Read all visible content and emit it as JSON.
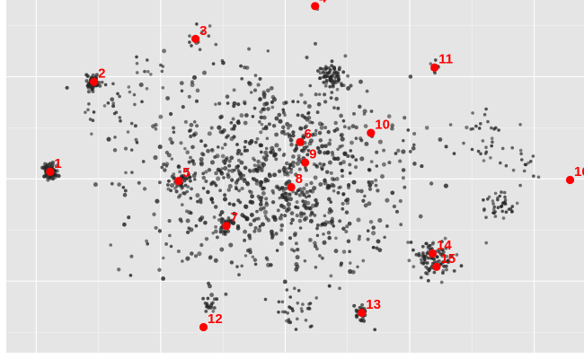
{
  "chart_data": {
    "type": "scatter",
    "title": "",
    "xlabel": "",
    "ylabel": "",
    "grid": true,
    "legend": "none",
    "xlim": [
      -28,
      30
    ],
    "ylim": [
      -17,
      17.5
    ],
    "colors": {
      "panel": "#e5e5e5",
      "gridline": "#ffffff",
      "point": "#262626",
      "highlight": "#ff0000"
    },
    "highlighted": [
      {
        "label": "1",
        "x": -23.6,
        "y": 0.7
      },
      {
        "label": "2",
        "x": -19.2,
        "y": 9.5
      },
      {
        "label": "3",
        "x": -9.0,
        "y": 13.7
      },
      {
        "label": "4",
        "x": 3.0,
        "y": 16.9
      },
      {
        "label": "5",
        "x": -10.7,
        "y": -0.2
      },
      {
        "label": "6",
        "x": 1.5,
        "y": 3.6
      },
      {
        "label": "7",
        "x": -5.9,
        "y": -4.6
      },
      {
        "label": "8",
        "x": 0.6,
        "y": -0.8
      },
      {
        "label": "9",
        "x": 2.0,
        "y": 1.6
      },
      {
        "label": "10",
        "x": 8.6,
        "y": 4.5
      },
      {
        "label": "11",
        "x": 15.0,
        "y": 10.9
      },
      {
        "label": "12",
        "x": -8.2,
        "y": -14.5
      },
      {
        "label": "13",
        "x": 7.7,
        "y": -13.1
      },
      {
        "label": "14",
        "x": 14.8,
        "y": -7.3
      },
      {
        "label": "15",
        "x": 15.2,
        "y": -8.6
      },
      {
        "label": "16",
        "x": 28.6,
        "y": -0.1
      }
    ]
  }
}
